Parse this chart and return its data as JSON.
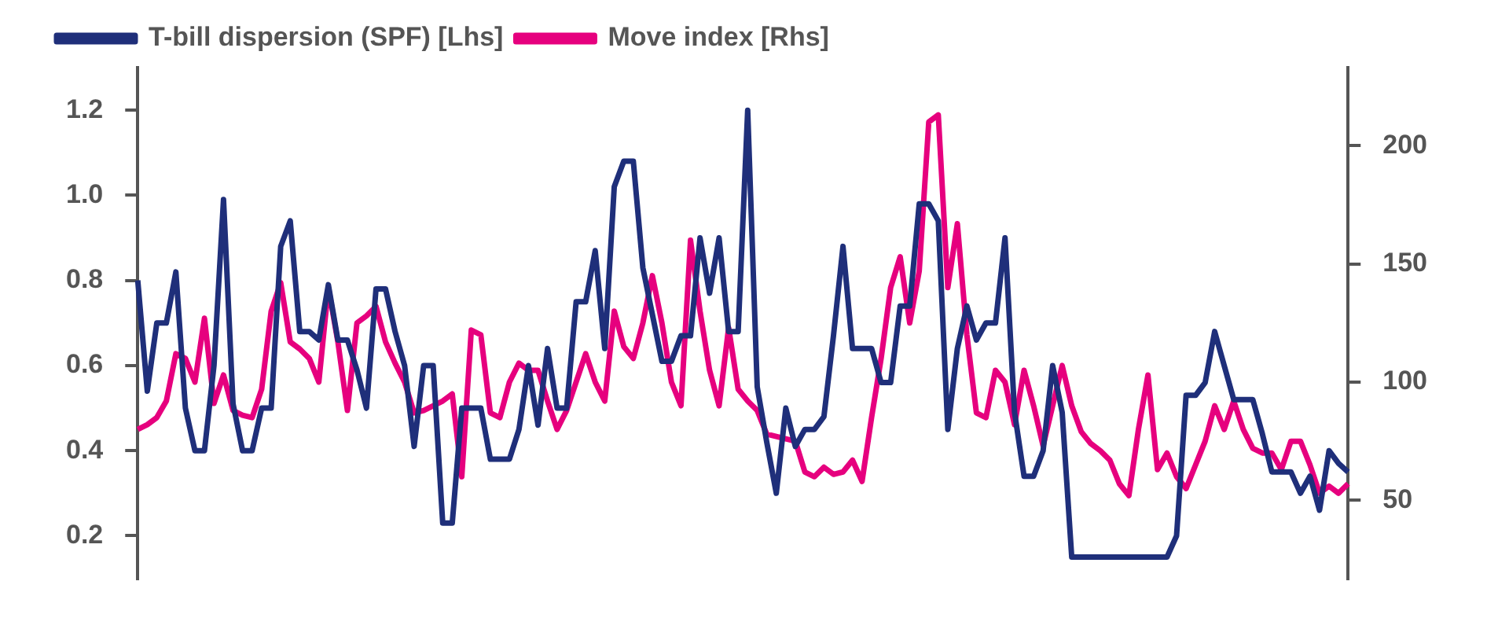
{
  "chart_data": {
    "type": "line",
    "ylim": [
      0.1,
      1.3
    ],
    "yticks": [
      {
        "value": 0.2,
        "label": "0.2"
      },
      {
        "value": 0.4,
        "label": "0.4"
      },
      {
        "value": 0.6,
        "label": "0.6"
      },
      {
        "value": 0.8,
        "label": "0.8"
      },
      {
        "value": 1.0,
        "label": "1.0"
      },
      {
        "value": 1.2,
        "label": "1.2"
      }
    ],
    "y2lim": [
      17,
      233
    ],
    "y2ticks": [
      {
        "value": 50,
        "label": "50"
      },
      {
        "value": 100,
        "label": "100"
      },
      {
        "value": 150,
        "label": "150"
      },
      {
        "value": 200,
        "label": "200"
      }
    ],
    "grid": false,
    "legend": "top left",
    "categories": [
      null,
      null,
      null,
      null,
      null,
      null,
      null,
      null,
      null,
      null,
      null,
      null,
      null,
      null,
      null,
      null,
      null,
      null,
      null,
      null,
      null,
      null,
      null,
      null,
      null,
      null,
      null,
      null,
      null,
      null,
      null,
      null,
      null,
      null,
      null,
      null,
      null,
      null,
      null,
      null,
      null,
      null,
      null,
      null,
      null,
      null,
      null,
      null,
      null,
      null,
      null,
      null,
      null,
      null,
      null,
      null,
      null,
      null,
      null,
      null,
      null,
      null,
      null,
      null,
      null,
      null,
      null,
      null,
      null,
      null,
      null,
      null,
      null,
      null,
      null,
      null,
      null,
      null,
      null,
      null,
      null,
      null,
      null,
      null,
      null,
      null,
      null,
      null,
      null,
      null,
      null,
      null,
      null,
      null,
      null,
      null,
      null,
      null,
      null,
      null,
      null,
      null,
      null,
      null,
      null,
      null,
      null,
      null,
      null,
      null,
      null,
      null,
      null,
      null,
      null,
      null,
      null,
      null,
      null,
      null,
      null,
      null,
      null,
      null,
      null,
      null,
      null,
      null
    ],
    "series": [
      {
        "name": "T-bill dispersion (SPF) [Lhs]",
        "color": "#1f2f7a",
        "values": [
          0.8,
          0.54,
          0.7,
          0.7,
          0.82,
          0.5,
          0.4,
          0.4,
          0.6,
          0.99,
          0.51,
          0.4,
          0.4,
          0.5,
          0.5,
          0.88,
          0.94,
          0.68,
          0.68,
          0.66,
          0.79,
          0.66,
          0.66,
          0.59,
          0.5,
          0.78,
          0.78,
          0.68,
          0.6,
          0.41,
          0.6,
          0.6,
          0.23,
          0.23,
          0.5,
          0.5,
          0.5,
          0.38,
          0.38,
          0.38,
          0.45,
          0.6,
          0.46,
          0.64,
          0.5,
          0.5,
          0.75,
          0.75,
          0.87,
          0.64,
          1.02,
          1.08,
          1.08,
          0.83,
          0.72,
          0.61,
          0.61,
          0.67,
          0.67,
          0.9,
          0.77,
          0.9,
          0.68,
          0.68,
          1.2,
          0.55,
          0.42,
          0.3,
          0.5,
          0.41,
          0.45,
          0.45,
          0.48,
          0.67,
          0.88,
          0.64,
          0.64,
          0.64,
          0.56,
          0.56,
          0.74,
          0.74,
          0.98,
          0.98,
          0.94,
          0.45,
          0.64,
          0.74,
          0.66,
          0.7,
          0.7,
          0.9,
          0.49,
          0.34,
          0.34,
          0.4,
          0.6,
          0.49,
          0.15,
          0.15,
          0.15,
          0.15,
          0.15,
          0.15,
          0.15,
          0.15,
          0.15,
          0.15,
          0.15,
          0.2,
          0.53,
          0.53,
          0.56,
          0.68,
          0.6,
          0.52,
          0.52,
          0.52,
          0.44,
          0.35,
          0.35,
          0.35,
          0.3,
          0.34,
          0.26,
          0.4,
          0.37,
          0.35
        ]
      },
      {
        "name": "Move index [Rhs]",
        "axis": "y2",
        "color": "#e6007e",
        "values": [
          80,
          82,
          85,
          92,
          112,
          110,
          100,
          127,
          91,
          103,
          88,
          86,
          85,
          97,
          130,
          142,
          117,
          114,
          110,
          100,
          140,
          117,
          88,
          125,
          128,
          132,
          117,
          108,
          100,
          87,
          88,
          90,
          92,
          95,
          60,
          122,
          120,
          87,
          85,
          100,
          108,
          105,
          105,
          92,
          80,
          88,
          100,
          112,
          100,
          92,
          130,
          115,
          110,
          125,
          145,
          125,
          100,
          90,
          160,
          130,
          105,
          90,
          123,
          97,
          92,
          88,
          78,
          77,
          76,
          75,
          62,
          60,
          64,
          61,
          62,
          67,
          58,
          85,
          110,
          140,
          153,
          125,
          147,
          210,
          213,
          140,
          167,
          120,
          87,
          85,
          105,
          100,
          82,
          105,
          90,
          73,
          90,
          107,
          90,
          79,
          74,
          71,
          67,
          57,
          52,
          80,
          103,
          63,
          70,
          60,
          55,
          65,
          75,
          90,
          80,
          92,
          80,
          72,
          70,
          70,
          63,
          75,
          75,
          65,
          53,
          56,
          53,
          57
        ]
      }
    ]
  }
}
